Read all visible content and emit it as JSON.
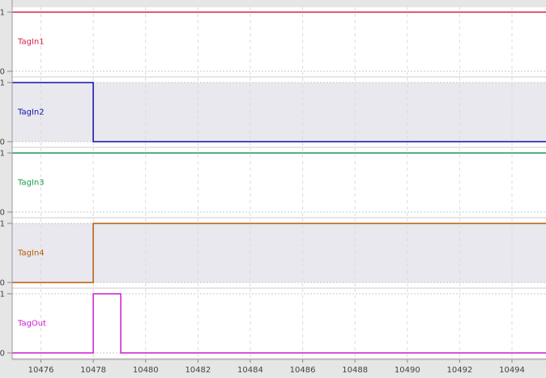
{
  "chart_data": {
    "type": "line",
    "subtype": "digital-timing",
    "x_ticks": [
      10476,
      10478,
      10480,
      10482,
      10484,
      10486,
      10488,
      10490,
      10492,
      10494
    ],
    "xlim": [
      10474.9,
      10495.3
    ],
    "ylim": [
      0,
      1
    ],
    "y_ticks": [
      0,
      1
    ],
    "grid": true,
    "series": [
      {
        "name": "TagIn1",
        "color": "#d6244a",
        "band": false,
        "points": [
          [
            10474.9,
            1
          ],
          [
            10495.3,
            1
          ]
        ]
      },
      {
        "name": "TagIn2",
        "color": "#1010a8",
        "band": true,
        "points": [
          [
            10474.9,
            1
          ],
          [
            10478.0,
            1
          ],
          [
            10478.0,
            0
          ],
          [
            10495.3,
            0
          ]
        ]
      },
      {
        "name": "TagIn3",
        "color": "#1a9a4a",
        "band": false,
        "points": [
          [
            10474.9,
            1
          ],
          [
            10495.3,
            1
          ]
        ]
      },
      {
        "name": "TagIn4",
        "color": "#b85a0a",
        "band": true,
        "points": [
          [
            10474.9,
            0
          ],
          [
            10478.0,
            0
          ],
          [
            10478.0,
            1
          ],
          [
            10495.3,
            1
          ]
        ]
      },
      {
        "name": "TagOut",
        "color": "#d01ad0",
        "band": false,
        "points": [
          [
            10474.9,
            0
          ],
          [
            10478.0,
            0
          ],
          [
            10478.0,
            1
          ],
          [
            10479.05,
            1
          ],
          [
            10479.05,
            0
          ],
          [
            10495.3,
            0
          ]
        ]
      }
    ]
  }
}
